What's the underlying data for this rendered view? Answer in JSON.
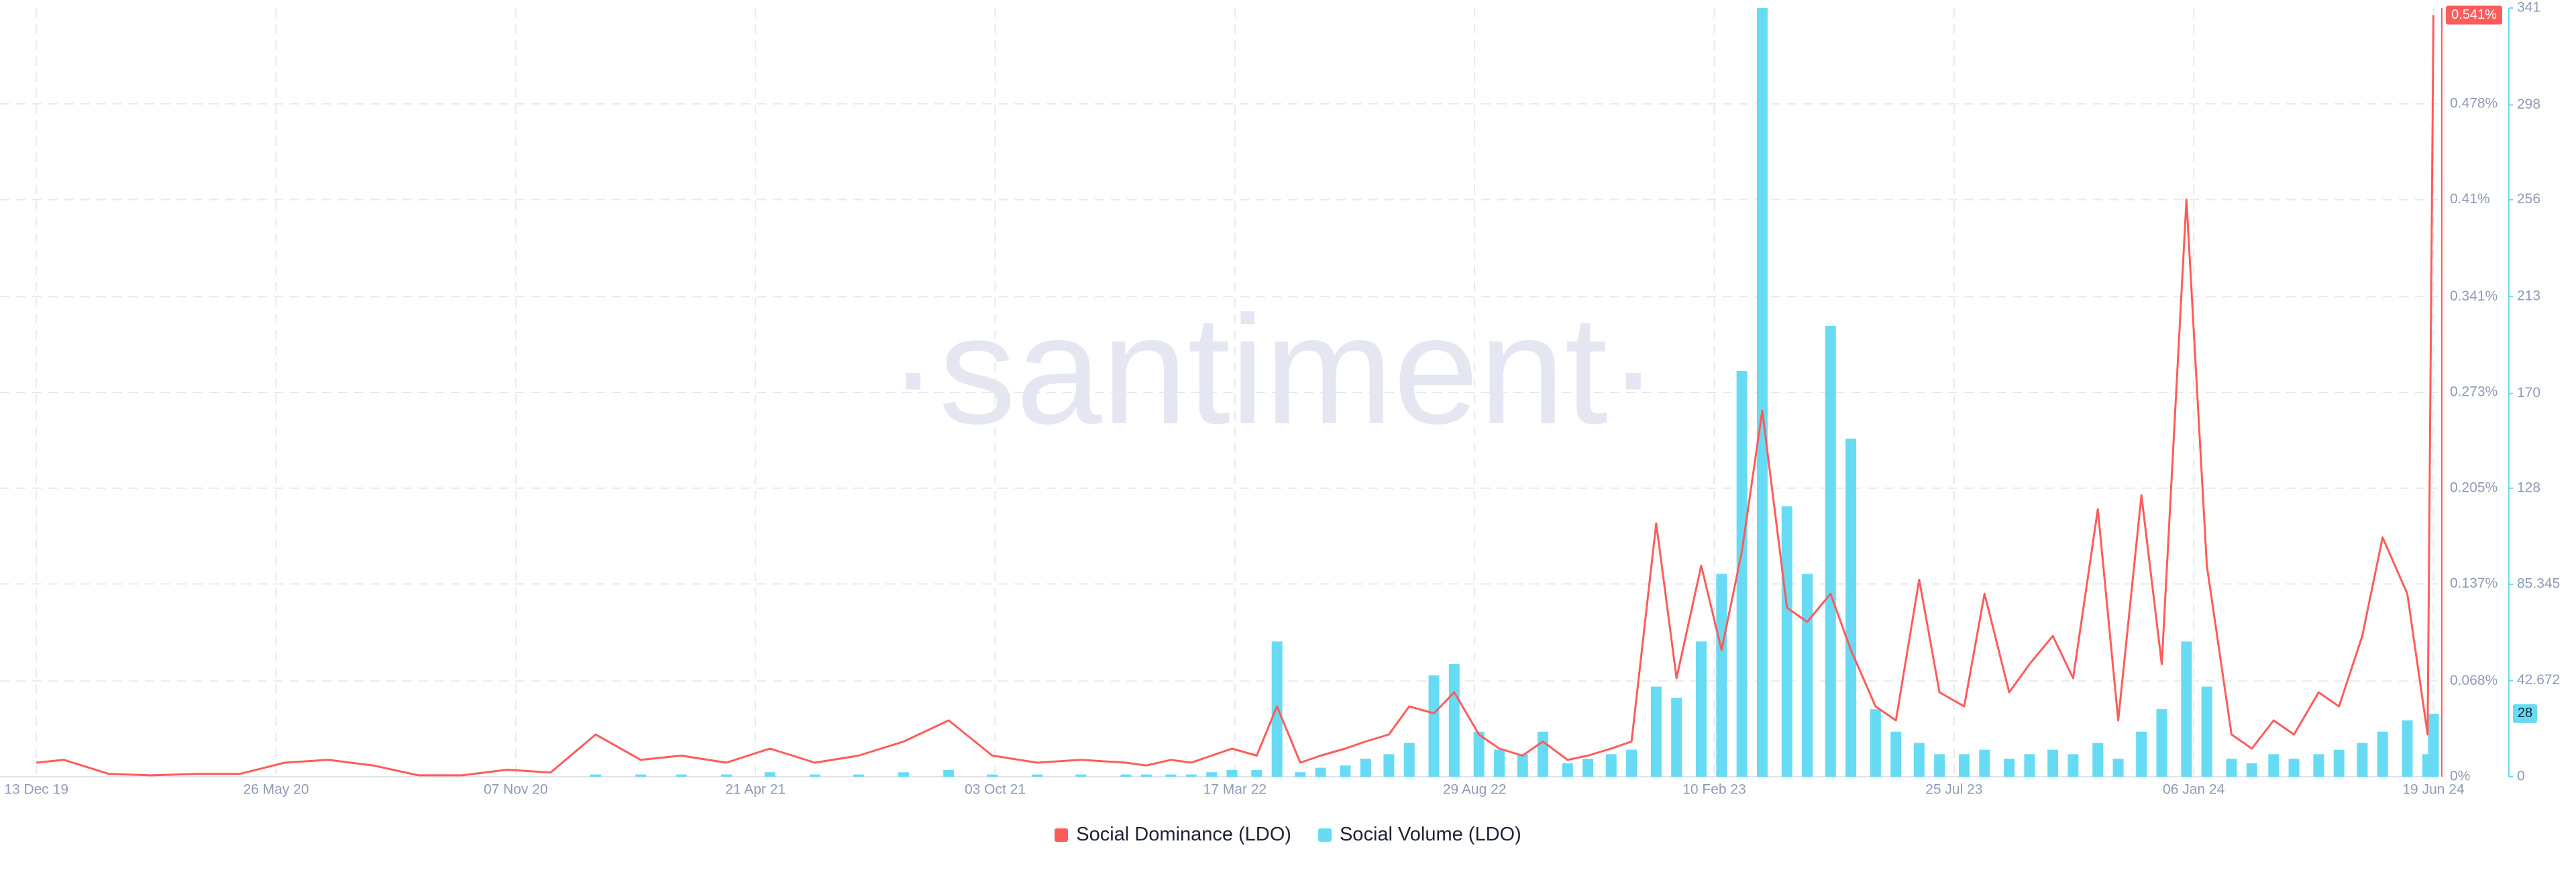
{
  "chart_data": {
    "type": "bar-line",
    "watermark": "·santiment·",
    "x": [
      "2019-12-13",
      "2020-01-01",
      "2020-02-01",
      "2020-03-01",
      "2020-04-01",
      "2020-05-01",
      "2020-06-01",
      "2020-07-01",
      "2020-08-01",
      "2020-09-01",
      "2020-10-01",
      "2020-11-01",
      "2020-12-01",
      "2021-01-01",
      "2021-02-01",
      "2021-03-01",
      "2021-04-01",
      "2021-05-01",
      "2021-06-01",
      "2021-07-01",
      "2021-08-01",
      "2021-09-01",
      "2021-10-01",
      "2021-11-01",
      "2021-12-01",
      "2022-01-01",
      "2022-01-15",
      "2022-02-01",
      "2022-02-15",
      "2022-03-01",
      "2022-03-15",
      "2022-04-01",
      "2022-04-15",
      "2022-05-01",
      "2022-05-15",
      "2022-06-01",
      "2022-06-15",
      "2022-07-01",
      "2022-07-15",
      "2022-08-01",
      "2022-08-15",
      "2022-09-01",
      "2022-09-15",
      "2022-10-01",
      "2022-10-15",
      "2022-11-01",
      "2022-11-15",
      "2022-12-01",
      "2022-12-15",
      "2023-01-01",
      "2023-01-15",
      "2023-02-01",
      "2023-02-15",
      "2023-03-01",
      "2023-03-15",
      "2023-04-01",
      "2023-04-15",
      "2023-05-01",
      "2023-05-15",
      "2023-06-01",
      "2023-06-15",
      "2023-07-01",
      "2023-07-15",
      "2023-08-01",
      "2023-08-15",
      "2023-09-01",
      "2023-09-15",
      "2023-10-01",
      "2023-10-15",
      "2023-11-01",
      "2023-11-15",
      "2023-12-01",
      "2023-12-15",
      "2024-01-01",
      "2024-01-15",
      "2024-02-01",
      "2024-02-15",
      "2024-03-01",
      "2024-03-15",
      "2024-04-01",
      "2024-04-15",
      "2024-05-01",
      "2024-05-15",
      "2024-06-01",
      "2024-06-15",
      "2024-06-19"
    ],
    "series": [
      {
        "name": "Social Dominance (LDO)",
        "color": "#ff5b5b",
        "kind": "line",
        "values": [
          0.01,
          0.012,
          0.002,
          0.001,
          0.002,
          0.002,
          0.01,
          0.012,
          0.008,
          0.001,
          0.001,
          0.005,
          0.003,
          0.03,
          0.012,
          0.015,
          0.01,
          0.02,
          0.01,
          0.015,
          0.025,
          0.04,
          0.015,
          0.01,
          0.012,
          0.01,
          0.008,
          0.012,
          0.01,
          0.015,
          0.02,
          0.015,
          0.05,
          0.01,
          0.015,
          0.02,
          0.025,
          0.03,
          0.05,
          0.045,
          0.06,
          0.03,
          0.02,
          0.015,
          0.025,
          0.012,
          0.015,
          0.02,
          0.025,
          0.18,
          0.07,
          0.15,
          0.09,
          0.16,
          0.26,
          0.12,
          0.11,
          0.13,
          0.09,
          0.05,
          0.04,
          0.14,
          0.06,
          0.05,
          0.13,
          0.06,
          0.08,
          0.1,
          0.07,
          0.19,
          0.04,
          0.2,
          0.08,
          0.41,
          0.15,
          0.03,
          0.02,
          0.04,
          0.03,
          0.06,
          0.05,
          0.1,
          0.17,
          0.13,
          0.03,
          0.541
        ],
        "value_labels": [
          null,
          null,
          null,
          null,
          null,
          null,
          null,
          null,
          null,
          null,
          null,
          null,
          null,
          null,
          null,
          null,
          null,
          null,
          null,
          null,
          null,
          null,
          null,
          null,
          null,
          null,
          null,
          null,
          null,
          null,
          null,
          null,
          null,
          null,
          null,
          null,
          null,
          null,
          null,
          null,
          null,
          null,
          null,
          null,
          null,
          null,
          null,
          null,
          null,
          null,
          null,
          null,
          null,
          null,
          null,
          null,
          null,
          null,
          null,
          null,
          null,
          null,
          null,
          null,
          null,
          null,
          null,
          null,
          null,
          null,
          null,
          null,
          null,
          null,
          null,
          null,
          null,
          null,
          null,
          null,
          null,
          null,
          null,
          null,
          null,
          "0.541%"
        ]
      },
      {
        "name": "Social Volume (LDO)",
        "color": "#68dbf4",
        "kind": "bar",
        "axis": "y2",
        "values": [
          0,
          0,
          0,
          0,
          0,
          0,
          0,
          0,
          0,
          0,
          0,
          0,
          0,
          1,
          1,
          1,
          1,
          2,
          1,
          1,
          2,
          3,
          1,
          1,
          1,
          1,
          1,
          1,
          1,
          2,
          3,
          3,
          60,
          2,
          4,
          5,
          8,
          10,
          15,
          45,
          50,
          20,
          12,
          10,
          20,
          6,
          8,
          10,
          12,
          40,
          35,
          60,
          90,
          180,
          341,
          120,
          90,
          200,
          150,
          30,
          20,
          15,
          10,
          10,
          12,
          8,
          10,
          12,
          10,
          15,
          8,
          20,
          30,
          60,
          40,
          8,
          6,
          10,
          8,
          10,
          12,
          15,
          20,
          25,
          10,
          28
        ]
      }
    ],
    "xlim": [
      "2019-11-18",
      "2024-06-22"
    ],
    "xticks": [
      {
        "value": "2019-12-13",
        "label": "13 Dec 19"
      },
      {
        "value": "2020-05-26",
        "label": "26 May 20"
      },
      {
        "value": "2020-11-07",
        "label": "07 Nov 20"
      },
      {
        "value": "2021-04-21",
        "label": "21 Apr 21"
      },
      {
        "value": "2021-10-03",
        "label": "03 Oct 21"
      },
      {
        "value": "2022-03-17",
        "label": "17 Mar 22"
      },
      {
        "value": "2022-08-29",
        "label": "29 Aug 22"
      },
      {
        "value": "2023-02-10",
        "label": "10 Feb 23"
      },
      {
        "value": "2023-07-25",
        "label": "25 Jul 23"
      },
      {
        "value": "2024-01-06",
        "label": "06 Jan 24"
      },
      {
        "value": "2024-06-19",
        "label": "19 Jun 24"
      }
    ],
    "ylim": [
      0,
      0.546
    ],
    "yticks": [
      {
        "value": 0,
        "label": "0%"
      },
      {
        "value": 0.068,
        "label": "0.068%"
      },
      {
        "value": 0.137,
        "label": "0.137%"
      },
      {
        "value": 0.205,
        "label": "0.205%"
      },
      {
        "value": 0.273,
        "label": "0.273%"
      },
      {
        "value": 0.341,
        "label": "0.341%"
      },
      {
        "value": 0.41,
        "label": "0.41%"
      },
      {
        "value": 0.478,
        "label": "0.478%"
      }
    ],
    "y2lim": [
      0,
      341
    ],
    "y2ticks": [
      0,
      42.672,
      85.345,
      128,
      170,
      213,
      256,
      298,
      341
    ],
    "grid": true
  }
}
